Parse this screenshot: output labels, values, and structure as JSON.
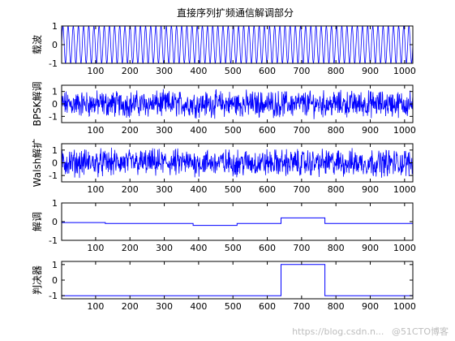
{
  "chart_data": {
    "title": "直接序列扩频通信解调部分",
    "type": "line",
    "line_color": "#0000ff",
    "xlim": [
      1,
      1024
    ],
    "x_ticks": [
      100,
      200,
      300,
      400,
      500,
      600,
      700,
      800,
      900,
      1000
    ],
    "grid": false,
    "subplots": [
      {
        "ylabel": "载波",
        "ylim": [
          -1,
          1
        ],
        "y_ticks": [
          -1,
          0,
          1
        ],
        "signal": "carrier",
        "description_values": {
          "amplitude": 1,
          "cycles_over_range": 68
        }
      },
      {
        "ylabel": "BPSK解调",
        "ylim": [
          -1.5,
          1.5
        ],
        "y_ticks": [
          -1,
          0,
          1
        ],
        "signal": "noisy",
        "description_values": {
          "range": [
            -1.5,
            1.5
          ]
        }
      },
      {
        "ylabel": "Walsh解扩",
        "ylim": [
          -1.5,
          1.5
        ],
        "y_ticks": [
          -1,
          0,
          1
        ],
        "signal": "noisy",
        "description_values": {
          "range": [
            -1.5,
            1.5
          ]
        }
      },
      {
        "ylabel": "解调",
        "ylim": [
          -1,
          1
        ],
        "y_ticks": [
          -1,
          0,
          1
        ],
        "signal": "step",
        "segments": [
          {
            "x0": 1,
            "x1": 128,
            "y": -0.05
          },
          {
            "x0": 128,
            "x1": 384,
            "y": -0.1
          },
          {
            "x0": 384,
            "x1": 512,
            "y": -0.2
          },
          {
            "x0": 512,
            "x1": 640,
            "y": -0.1
          },
          {
            "x0": 640,
            "x1": 768,
            "y": 0.2
          },
          {
            "x0": 768,
            "x1": 1024,
            "y": -0.1
          }
        ]
      },
      {
        "ylabel": "判决器",
        "ylim": [
          -1.2,
          1.2
        ],
        "y_ticks": [
          -1,
          0,
          1
        ],
        "signal": "step",
        "segments": [
          {
            "x0": 1,
            "x1": 640,
            "y": -1
          },
          {
            "x0": 640,
            "x1": 768,
            "y": 1
          },
          {
            "x0": 768,
            "x1": 1024,
            "y": -1
          }
        ]
      }
    ]
  },
  "watermark": {
    "url": "https://blog.csdn.n...",
    "brand": "@51CTO博客"
  }
}
